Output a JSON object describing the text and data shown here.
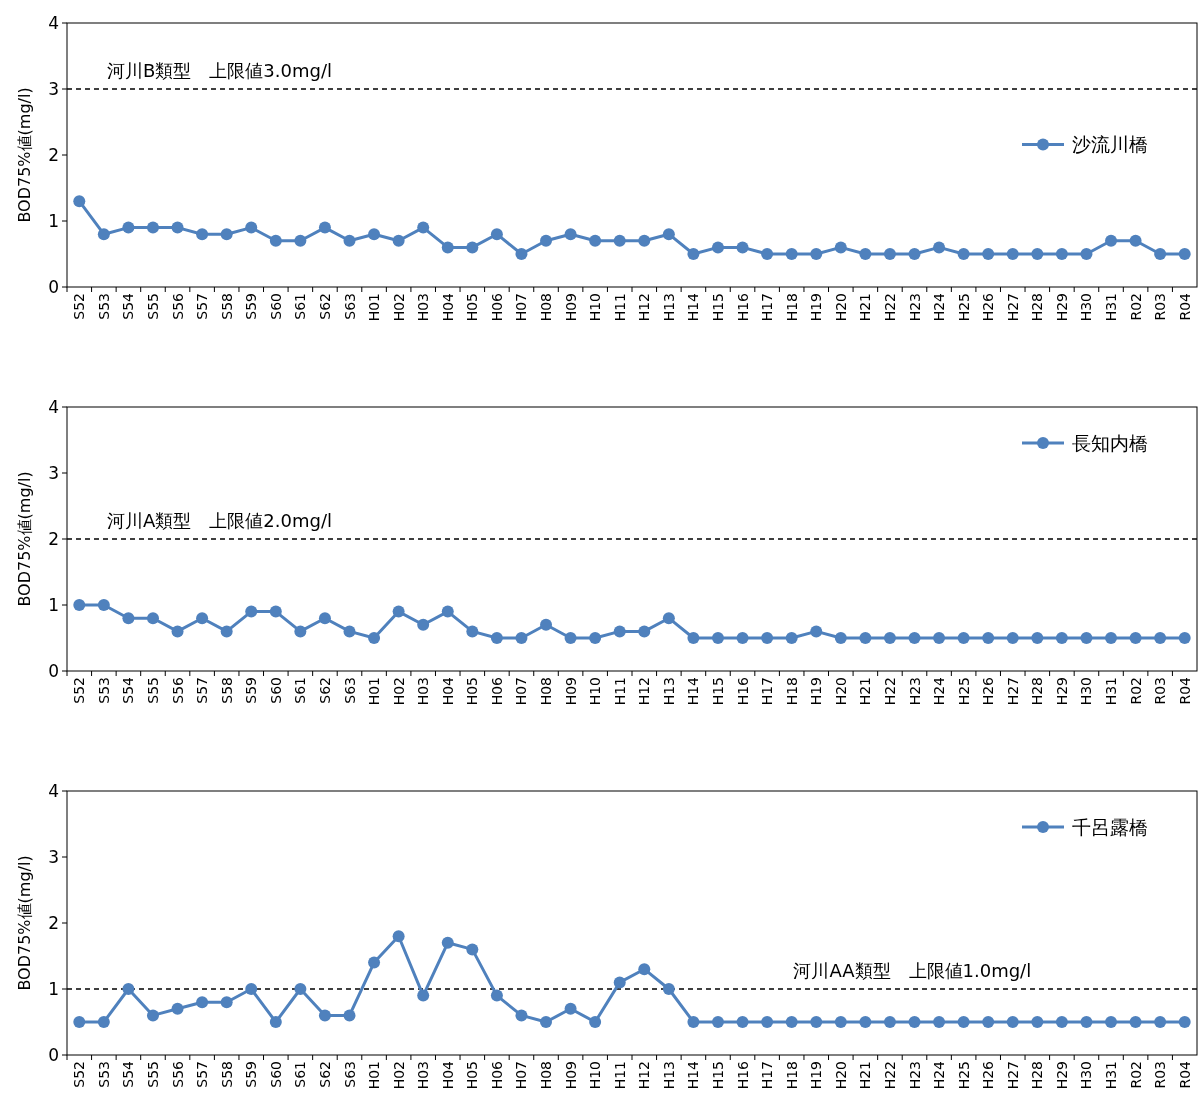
{
  "chart_data": [
    {
      "type": "line",
      "ylabel": "BOD75%値(mg/l)",
      "categories": [
        "S52",
        "S53",
        "S54",
        "S55",
        "S56",
        "S57",
        "S58",
        "S59",
        "S60",
        "S61",
        "S62",
        "S63",
        "H01",
        "H02",
        "H03",
        "H04",
        "H05",
        "H06",
        "H07",
        "H08",
        "H09",
        "H10",
        "H11",
        "H12",
        "H13",
        "H14",
        "H15",
        "H16",
        "H17",
        "H18",
        "H19",
        "H20",
        "H21",
        "H22",
        "H23",
        "H24",
        "H25",
        "H26",
        "H27",
        "H28",
        "H29",
        "H30",
        "H31",
        "R02",
        "R03",
        "R04"
      ],
      "ylim": [
        0,
        4
      ],
      "yticks": [
        0,
        1,
        2,
        3,
        4
      ],
      "marker": "circle",
      "legend": "right",
      "series": [
        {
          "name": "沙流川橋",
          "color": "#4f81bd",
          "values": [
            1.3,
            0.8,
            0.9,
            0.9,
            0.9,
            0.8,
            0.8,
            0.9,
            0.7,
            0.7,
            0.9,
            0.7,
            0.8,
            0.7,
            0.9,
            0.6,
            0.6,
            0.8,
            0.5,
            0.7,
            0.8,
            0.7,
            0.7,
            0.7,
            0.8,
            0.5,
            0.6,
            0.6,
            0.5,
            0.5,
            0.5,
            0.6,
            0.5,
            0.5,
            0.5,
            0.6,
            0.5,
            0.5,
            0.5,
            0.5,
            0.5,
            0.5,
            0.7,
            0.7,
            0.5,
            0.5
          ]
        }
      ],
      "ref_lines": [
        {
          "axis": "y",
          "value": 3,
          "label": "河川B類型　上限値3.0mg/l",
          "color": "#000000",
          "line_style": "dashed"
        }
      ]
    },
    {
      "type": "line",
      "ylabel": "BOD75%値(mg/l)",
      "categories": [
        "S52",
        "S53",
        "S54",
        "S55",
        "S56",
        "S57",
        "S58",
        "S59",
        "S60",
        "S61",
        "S62",
        "S63",
        "H01",
        "H02",
        "H03",
        "H04",
        "H05",
        "H06",
        "H07",
        "H08",
        "H09",
        "H10",
        "H11",
        "H12",
        "H13",
        "H14",
        "H15",
        "H16",
        "H17",
        "H18",
        "H19",
        "H20",
        "H21",
        "H22",
        "H23",
        "H24",
        "H25",
        "H26",
        "H27",
        "H28",
        "H29",
        "H30",
        "H31",
        "R02",
        "R03",
        "R04"
      ],
      "ylim": [
        0,
        4
      ],
      "yticks": [
        0,
        1,
        2,
        3,
        4
      ],
      "marker": "circle",
      "legend": "top right",
      "series": [
        {
          "name": "長知内橋",
          "color": "#4f81bd",
          "values": [
            1.0,
            1.0,
            0.8,
            0.8,
            0.6,
            0.8,
            0.6,
            0.9,
            0.9,
            0.6,
            0.8,
            0.6,
            0.5,
            0.9,
            0.7,
            0.9,
            0.6,
            0.5,
            0.5,
            0.7,
            0.5,
            0.5,
            0.6,
            0.6,
            0.8,
            0.5,
            0.5,
            0.5,
            0.5,
            0.5,
            0.6,
            0.5,
            0.5,
            0.5,
            0.5,
            0.5,
            0.5,
            0.5,
            0.5,
            0.5,
            0.5,
            0.5,
            0.5,
            0.5,
            0.5,
            0.5
          ]
        }
      ],
      "ref_lines": [
        {
          "axis": "y",
          "value": 2,
          "label": "河川A類型　上限値2.0mg/l",
          "color": "#000000",
          "line_style": "dashed"
        }
      ]
    },
    {
      "type": "line",
      "ylabel": "BOD75%値(mg/l)",
      "categories": [
        "S52",
        "S53",
        "S54",
        "S55",
        "S56",
        "S57",
        "S58",
        "S59",
        "S60",
        "S61",
        "S62",
        "S63",
        "H01",
        "H02",
        "H03",
        "H04",
        "H05",
        "H06",
        "H07",
        "H08",
        "H09",
        "H10",
        "H11",
        "H12",
        "H13",
        "H14",
        "H15",
        "H16",
        "H17",
        "H18",
        "H19",
        "H20",
        "H21",
        "H22",
        "H23",
        "H24",
        "H25",
        "H26",
        "H27",
        "H28",
        "H29",
        "H30",
        "H31",
        "R02",
        "R03",
        "R04"
      ],
      "ylim": [
        0,
        4
      ],
      "yticks": [
        0,
        1,
        2,
        3,
        4
      ],
      "marker": "circle",
      "legend": "top right",
      "series": [
        {
          "name": "千呂露橋",
          "color": "#4f81bd",
          "values": [
            0.5,
            0.5,
            1.0,
            0.6,
            0.7,
            0.8,
            0.8,
            1.0,
            0.5,
            1.0,
            0.6,
            0.6,
            1.4,
            1.8,
            0.9,
            1.7,
            1.6,
            0.9,
            0.6,
            0.5,
            0.7,
            0.5,
            1.1,
            1.3,
            1.0,
            0.5,
            0.5,
            0.5,
            0.5,
            0.5,
            0.5,
            0.5,
            0.5,
            0.5,
            0.5,
            0.5,
            0.5,
            0.5,
            0.5,
            0.5,
            0.5,
            0.5,
            0.5,
            0.5,
            0.5,
            0.5
          ]
        }
      ],
      "ref_lines": [
        {
          "axis": "y",
          "value": 1,
          "label": "河川AA類型　上限値1.0mg/l",
          "color": "#000000",
          "line_style": "dashed"
        }
      ]
    }
  ]
}
